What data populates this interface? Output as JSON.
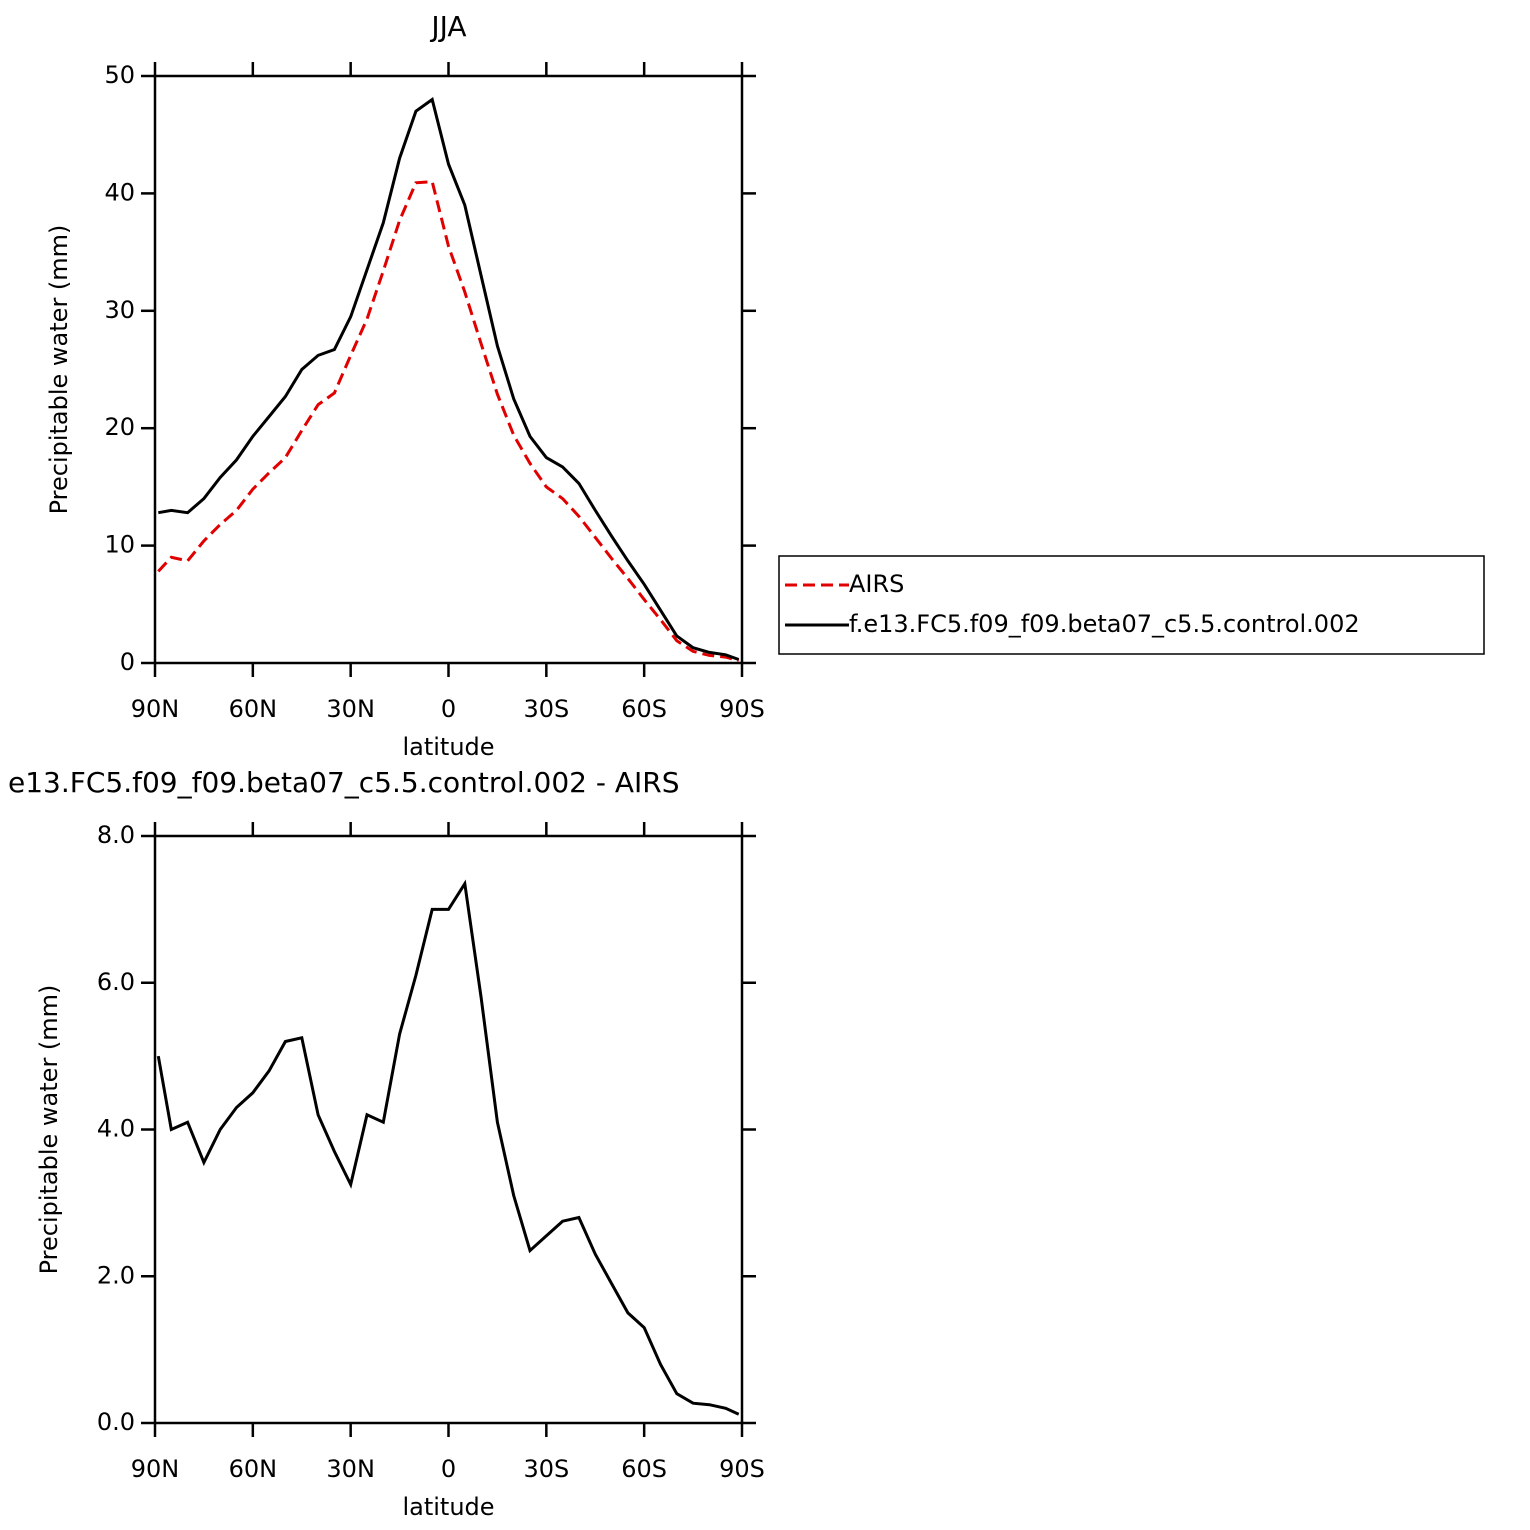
{
  "chart_data": [
    {
      "type": "line",
      "title": "JJA",
      "xlabel": "latitude",
      "ylabel": "Precipitable water (mm)",
      "x": [
        89,
        85,
        80,
        75,
        70,
        65,
        60,
        55,
        50,
        45,
        40,
        35,
        30,
        25,
        20,
        15,
        10,
        5,
        0,
        -5,
        -10,
        -15,
        -20,
        -25,
        -30,
        -35,
        -40,
        -45,
        -50,
        -55,
        -60,
        -65,
        -70,
        -75,
        -80,
        -85,
        -89
      ],
      "series": [
        {
          "name": "AIRS",
          "color": "#e00000",
          "linestyle": "dashed",
          "values": [
            7.8,
            9.0,
            8.7,
            10.4,
            11.8,
            13.0,
            14.8,
            16.2,
            17.5,
            19.8,
            22.0,
            23.0,
            26.2,
            29.3,
            33.4,
            37.7,
            40.9,
            41.0,
            35.5,
            31.6,
            27.2,
            22.9,
            19.4,
            17.0,
            15.0,
            14.0,
            12.5,
            10.7,
            8.9,
            7.2,
            5.4,
            3.7,
            1.9,
            1.0,
            0.65,
            0.5,
            0.2
          ]
        },
        {
          "name": "f.e13.FC5.f09_f09.beta07_c5.5.control.002",
          "color": "#000000",
          "linestyle": "solid",
          "values": [
            12.8,
            13.0,
            12.8,
            14.0,
            15.8,
            17.3,
            19.3,
            21.0,
            22.7,
            25.0,
            26.2,
            26.7,
            29.5,
            33.5,
            37.5,
            43.0,
            47.0,
            48.0,
            42.5,
            39.0,
            33.0,
            27.0,
            22.5,
            19.3,
            17.5,
            16.7,
            15.3,
            13.0,
            10.8,
            8.7,
            6.7,
            4.5,
            2.3,
            1.3,
            0.9,
            0.7,
            0.3
          ]
        }
      ],
      "xlim": [
        90,
        -90
      ],
      "xticks": [
        {
          "value": 90,
          "label": "90N"
        },
        {
          "value": 60,
          "label": "60N"
        },
        {
          "value": 30,
          "label": "30N"
        },
        0,
        {
          "value": -30,
          "label": "30S"
        },
        {
          "value": -60,
          "label": "60S"
        },
        {
          "value": -90,
          "label": "90S"
        }
      ],
      "ylim": [
        0,
        50
      ],
      "yticks": [
        0,
        10,
        20,
        30,
        40,
        50
      ],
      "legend": "right"
    },
    {
      "type": "line",
      "title": "e13.FC5.f09_f09.beta07_c5.5.control.002 - AIRS",
      "xlabel": "latitude",
      "ylabel": "Precipitable water (mm)",
      "x": [
        89,
        85,
        80,
        75,
        70,
        65,
        60,
        55,
        50,
        45,
        40,
        35,
        30,
        25,
        20,
        15,
        10,
        5,
        0,
        -5,
        -10,
        -15,
        -20,
        -25,
        -30,
        -35,
        -40,
        -45,
        -50,
        -55,
        -60,
        -65,
        -70,
        -75,
        -80,
        -85,
        -89
      ],
      "series": [
        {
          "color": "#000000",
          "linestyle": "solid",
          "values": [
            5.0,
            4.0,
            4.1,
            3.55,
            4.0,
            4.3,
            4.5,
            4.8,
            5.2,
            5.25,
            4.2,
            3.7,
            3.25,
            4.2,
            4.1,
            5.3,
            6.1,
            7.0,
            7.0,
            7.35,
            5.8,
            4.1,
            3.1,
            2.35,
            2.55,
            2.75,
            2.8,
            2.3,
            1.9,
            1.5,
            1.3,
            0.8,
            0.4,
            0.27,
            0.25,
            0.2,
            0.12
          ]
        }
      ],
      "xlim": [
        90,
        -90
      ],
      "xticks": [
        {
          "value": 90,
          "label": "90N"
        },
        {
          "value": 60,
          "label": "60N"
        },
        {
          "value": 30,
          "label": "30N"
        },
        0,
        {
          "value": -30,
          "label": "30S"
        },
        {
          "value": -60,
          "label": "60S"
        },
        {
          "value": -90,
          "label": "90S"
        }
      ],
      "ylim": [
        0,
        8
      ],
      "yticks": [
        {
          "value": 0,
          "label": "0.0"
        },
        {
          "value": 2,
          "label": "2.0"
        },
        {
          "value": 4,
          "label": "4.0"
        },
        {
          "value": 6,
          "label": "6.0"
        },
        {
          "value": 8,
          "label": "8.0"
        }
      ]
    }
  ]
}
